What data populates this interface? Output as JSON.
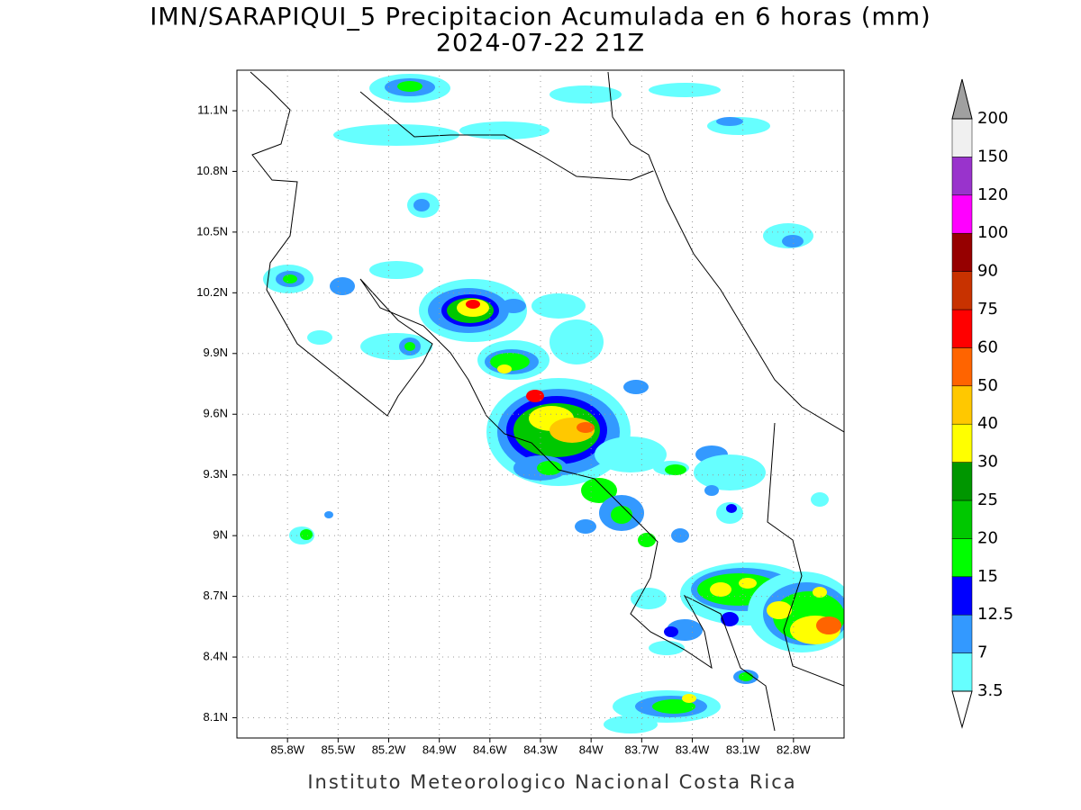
{
  "chart_data": {
    "type": "contour-map",
    "title": "IMN/SARAPIQUI_5 Precipitacion Acumulada en 6 horas (mm)",
    "subtitle": "2024-07-22 21Z",
    "xlim": [
      -86.1,
      -82.5
    ],
    "ylim": [
      8.0,
      11.3
    ],
    "xticks": [
      {
        "value": -85.8,
        "label": "85.8W"
      },
      {
        "value": -85.5,
        "label": "85.5W"
      },
      {
        "value": -85.2,
        "label": "85.2W"
      },
      {
        "value": -84.9,
        "label": "84.9W"
      },
      {
        "value": -84.6,
        "label": "84.6W"
      },
      {
        "value": -84.3,
        "label": "84.3W"
      },
      {
        "value": -84.0,
        "label": "84W"
      },
      {
        "value": -83.7,
        "label": "83.7W"
      },
      {
        "value": -83.4,
        "label": "83.4W"
      },
      {
        "value": -83.1,
        "label": "83.1W"
      },
      {
        "value": -82.8,
        "label": "82.8W"
      }
    ],
    "yticks": [
      {
        "value": 8.1,
        "label": "8.1N"
      },
      {
        "value": 8.4,
        "label": "8.4N"
      },
      {
        "value": 8.7,
        "label": "8.7N"
      },
      {
        "value": 9.0,
        "label": "9N"
      },
      {
        "value": 9.3,
        "label": "9.3N"
      },
      {
        "value": 9.6,
        "label": "9.6N"
      },
      {
        "value": 9.9,
        "label": "9.9N"
      },
      {
        "value": 10.2,
        "label": "10.2N"
      },
      {
        "value": 10.5,
        "label": "10.5N"
      },
      {
        "value": 10.8,
        "label": "10.8N"
      },
      {
        "value": 11.1,
        "label": "11.1N"
      }
    ],
    "grid": true,
    "colorbar": {
      "levels": [
        3.5,
        7,
        12.5,
        15,
        20,
        25,
        30,
        40,
        50,
        60,
        75,
        90,
        100,
        120,
        150,
        200
      ],
      "colors": [
        "#66ffff",
        "#3399ff",
        "#0000ff",
        "#00ff00",
        "#00c800",
        "#009600",
        "#ffff00",
        "#ffc800",
        "#ff6400",
        "#ff0000",
        "#c83200",
        "#960000",
        "#ff00ff",
        "#9933cc",
        "#f0f0f0"
      ],
      "over_color": "#a0a0a0",
      "under_color": "#ffffff"
    },
    "footer": "Instituto Meteorologico Nacional Costa Rica"
  }
}
